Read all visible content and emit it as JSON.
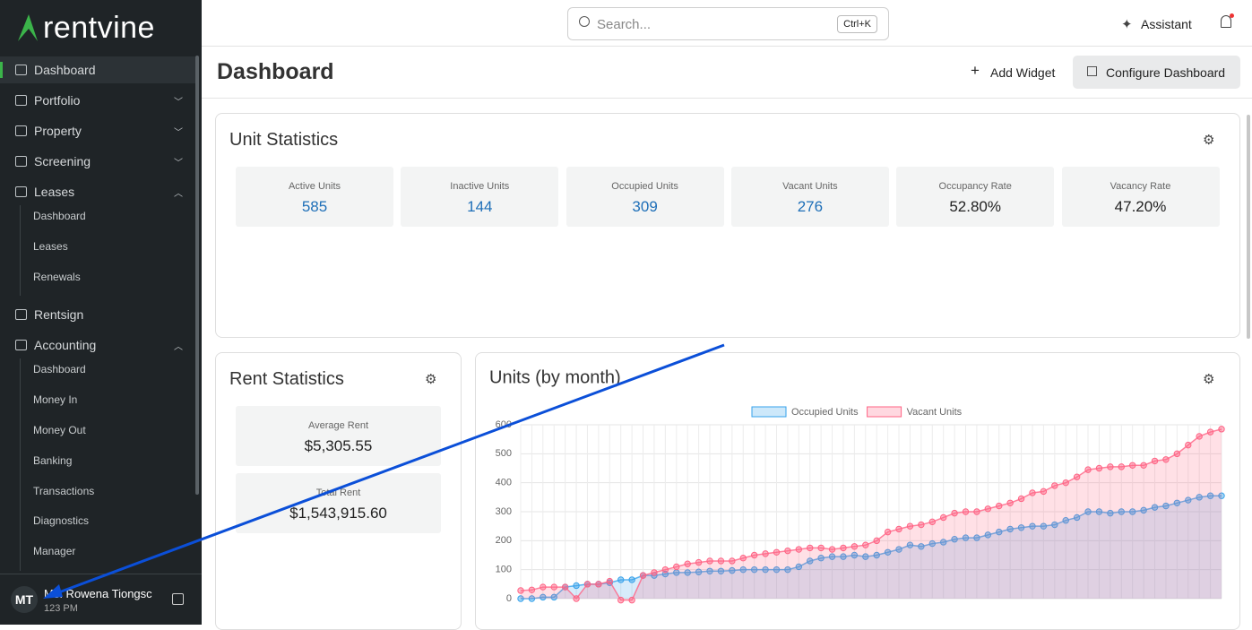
{
  "sidebar": {
    "logo": "rentvine",
    "nav": [
      {
        "label": "Dashboard",
        "active": true
      },
      {
        "label": "Portfolio",
        "expanded": false
      },
      {
        "label": "Property",
        "expanded": false
      },
      {
        "label": "Screening",
        "expanded": false
      },
      {
        "label": "Leases",
        "expanded": true,
        "children": [
          "Dashboard",
          "Leases",
          "Renewals"
        ]
      },
      {
        "label": "Rentsign"
      },
      {
        "label": "Accounting",
        "expanded": true,
        "children": [
          "Dashboard",
          "Money In",
          "Money Out",
          "Banking",
          "Transactions",
          "Diagnostics",
          "Manager"
        ]
      }
    ],
    "user": {
      "initials": "MT",
      "name": "Ms. Rowena Tiongsc",
      "subtitle": "123 PM"
    }
  },
  "header": {
    "search_placeholder": "Search...",
    "shortcut": "Ctrl+K",
    "assistant": "Assistant"
  },
  "page": {
    "title": "Dashboard",
    "add_widget": "Add Widget",
    "configure": "Configure Dashboard"
  },
  "unit_statistics": {
    "title": "Unit Statistics",
    "stats": [
      {
        "label": "Active Units",
        "value": "585",
        "link": true
      },
      {
        "label": "Inactive Units",
        "value": "144",
        "link": true
      },
      {
        "label": "Occupied Units",
        "value": "309",
        "link": true
      },
      {
        "label": "Vacant Units",
        "value": "276",
        "link": true
      },
      {
        "label": "Occupancy Rate",
        "value": "52.80%",
        "link": false
      },
      {
        "label": "Vacancy Rate",
        "value": "47.20%",
        "link": false
      }
    ]
  },
  "rent_statistics": {
    "title": "Rent Statistics",
    "stats": [
      {
        "label": "Average Rent",
        "value": "$5,305.55"
      },
      {
        "label": "Total Rent",
        "value": "$1,543,915.60"
      }
    ]
  },
  "chart_data": {
    "type": "line",
    "title": "Units (by month)",
    "fill": true,
    "grid": true,
    "legend": "top",
    "ylim": [
      0,
      600
    ],
    "yticks": [
      0,
      100,
      200,
      300,
      400,
      500,
      600
    ],
    "series": [
      {
        "name": "Occupied Units",
        "color": "#36a2eb",
        "values": [
          0,
          0,
          5,
          5,
          40,
          45,
          50,
          50,
          55,
          65,
          65,
          80,
          80,
          85,
          90,
          90,
          92,
          95,
          95,
          97,
          100,
          100,
          100,
          100,
          100,
          110,
          130,
          140,
          145,
          145,
          150,
          145,
          150,
          160,
          170,
          185,
          180,
          190,
          195,
          205,
          210,
          210,
          220,
          230,
          240,
          245,
          250,
          250,
          255,
          270,
          280,
          300,
          300,
          295,
          300,
          300,
          305,
          315,
          320,
          330,
          340,
          350,
          355,
          355
        ]
      },
      {
        "name": "Vacant Units",
        "color": "#ff6384",
        "values": [
          28,
          30,
          40,
          40,
          40,
          0,
          50,
          50,
          60,
          -5,
          -5,
          80,
          90,
          100,
          110,
          120,
          125,
          130,
          130,
          130,
          140,
          150,
          155,
          160,
          165,
          170,
          175,
          175,
          170,
          175,
          180,
          185,
          200,
          230,
          240,
          250,
          255,
          265,
          280,
          295,
          300,
          300,
          310,
          320,
          330,
          345,
          365,
          370,
          390,
          400,
          420,
          445,
          450,
          455,
          455,
          460,
          460,
          475,
          480,
          500,
          530,
          560,
          575,
          585
        ]
      }
    ]
  }
}
